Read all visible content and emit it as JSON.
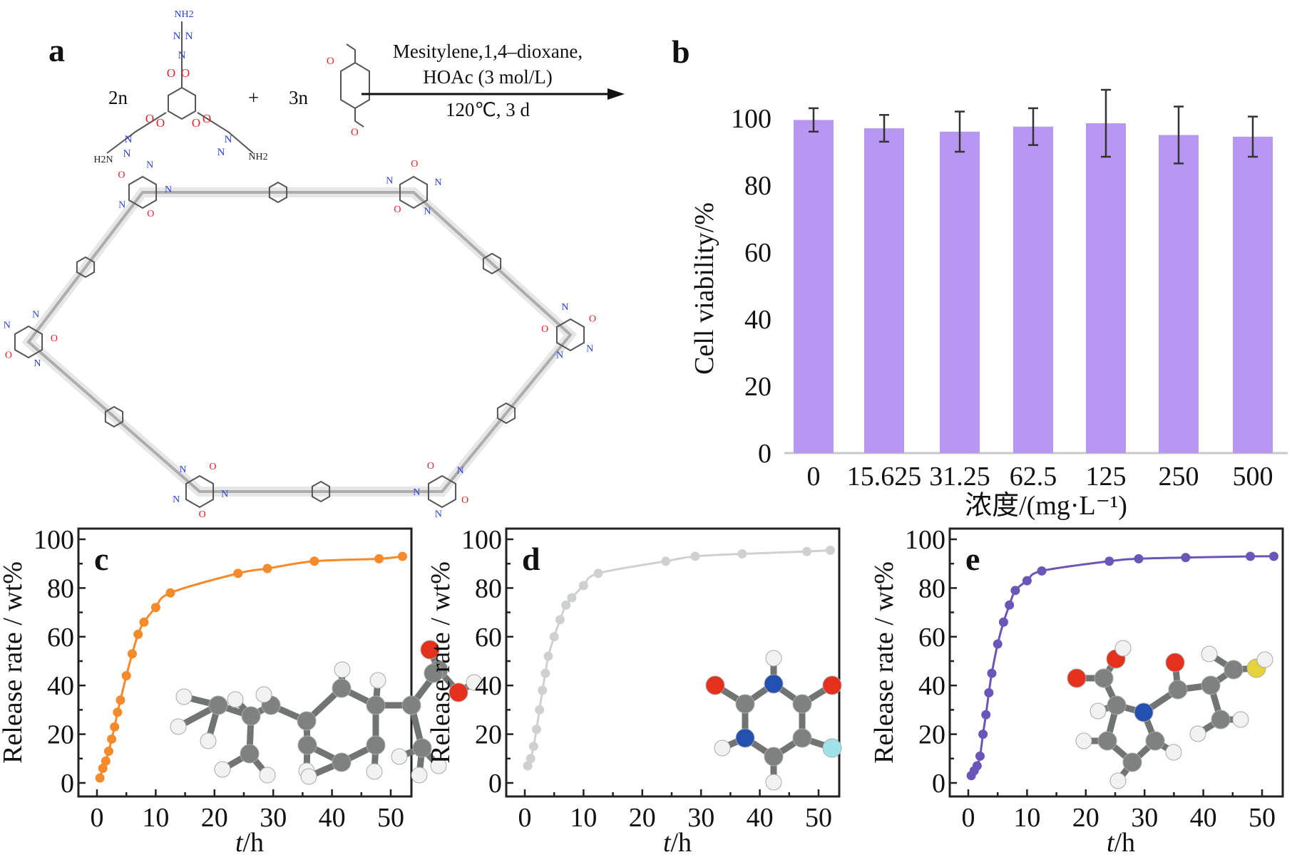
{
  "panel_a": {
    "label": "a",
    "reactant1_coef": "2n",
    "plus": "+",
    "reactant2_coef": "3n",
    "conditions_line1": "Mesitylene,1,4–dioxane,",
    "conditions_line2": "HOAc (3 mol/L)",
    "conditions_line3": "120℃, 3 d",
    "atom_labels": {
      "amine": "NH2",
      "amine_left": "H2N",
      "nitrogen": "N",
      "oxygen": "O"
    },
    "colors": {
      "oxygen": "#e8202a",
      "nitrogen": "#2a3fd8",
      "bond": "#555555"
    }
  },
  "chart_data": [
    {
      "panel": "b",
      "type": "bar",
      "categories": [
        "0",
        "15.625",
        "31.25",
        "62.5",
        "125",
        "250",
        "500"
      ],
      "values": [
        99.5,
        97,
        96,
        97.5,
        98.5,
        95,
        94.5
      ],
      "errors": [
        3.5,
        4,
        6,
        5.5,
        10,
        8.5,
        6
      ],
      "ylabel": "Cell viability/%",
      "xlabel": "浓度/(mg·L⁻¹)",
      "ylim": [
        0,
        100
      ],
      "yticks": [
        "0",
        "20",
        "40",
        "60",
        "80",
        "100"
      ],
      "grid": false,
      "color": "#b897f2"
    },
    {
      "panel": "c",
      "type": "line",
      "x": [
        0.5,
        1,
        1.5,
        2,
        2.5,
        3,
        3.5,
        4,
        5,
        6,
        7,
        8,
        10,
        12.5,
        24,
        29,
        37,
        48,
        52
      ],
      "y": [
        2,
        6,
        9,
        13,
        18,
        23,
        29,
        34,
        44,
        53,
        61,
        66,
        72,
        78,
        86,
        88,
        91,
        92,
        93
      ],
      "xlabel_italic": "t",
      "xlabel_unit": "/h",
      "ylabel": "Release rate / wt%",
      "xlim": [
        0,
        52
      ],
      "ylim": [
        0,
        100
      ],
      "xticks": [
        "0",
        "10",
        "20",
        "30",
        "40",
        "50"
      ],
      "yticks": [
        "0",
        "20",
        "40",
        "60",
        "80",
        "100"
      ],
      "color": "#f48a2a",
      "grid": false
    },
    {
      "panel": "d",
      "type": "line",
      "x": [
        0.5,
        1,
        1.5,
        2,
        2.5,
        3,
        3.5,
        4,
        5,
        6,
        7,
        8,
        10,
        12.5,
        24,
        29,
        37,
        48,
        52
      ],
      "y": [
        7,
        10,
        15,
        22,
        30,
        38,
        45,
        52,
        60,
        67,
        73,
        76,
        81,
        86,
        91,
        93,
        94,
        95,
        95.5
      ],
      "xlabel_italic": "t",
      "xlabel_unit": "/h",
      "ylabel": "Release rate / wt%",
      "xlim": [
        0,
        52
      ],
      "ylim": [
        0,
        100
      ],
      "xticks": [
        "0",
        "10",
        "20",
        "30",
        "40",
        "50"
      ],
      "yticks": [
        "0",
        "20",
        "40",
        "60",
        "80",
        "100"
      ],
      "color": "#cfd1d0",
      "grid": false
    },
    {
      "panel": "e",
      "type": "line",
      "x": [
        0.5,
        1,
        1.5,
        2,
        2.5,
        3,
        3.5,
        4,
        5,
        6,
        7,
        8,
        10,
        12.5,
        24,
        29,
        37,
        48,
        52
      ],
      "y": [
        3,
        5,
        7,
        11,
        20,
        28,
        37,
        45,
        57,
        66,
        73,
        79,
        83,
        87,
        91,
        92,
        92.5,
        93,
        93
      ],
      "xlabel_italic": "t",
      "xlabel_unit": "/h",
      "ylabel": "Release rate / wt%",
      "xlim": [
        0,
        52
      ],
      "ylim": [
        0,
        100
      ],
      "xticks": [
        "0",
        "10",
        "20",
        "30",
        "40",
        "50"
      ],
      "yticks": [
        "0",
        "20",
        "40",
        "60",
        "80",
        "100"
      ],
      "color": "#6a55b8",
      "grid": false
    }
  ],
  "molecule_colors": {
    "carbon": "#7d8281",
    "hydrogen": "#f2f2f2",
    "oxygen": "#e5301c",
    "nitrogen": "#2450b0",
    "fluorine": "#9fe3ea",
    "sulfur": "#e6d23a"
  }
}
